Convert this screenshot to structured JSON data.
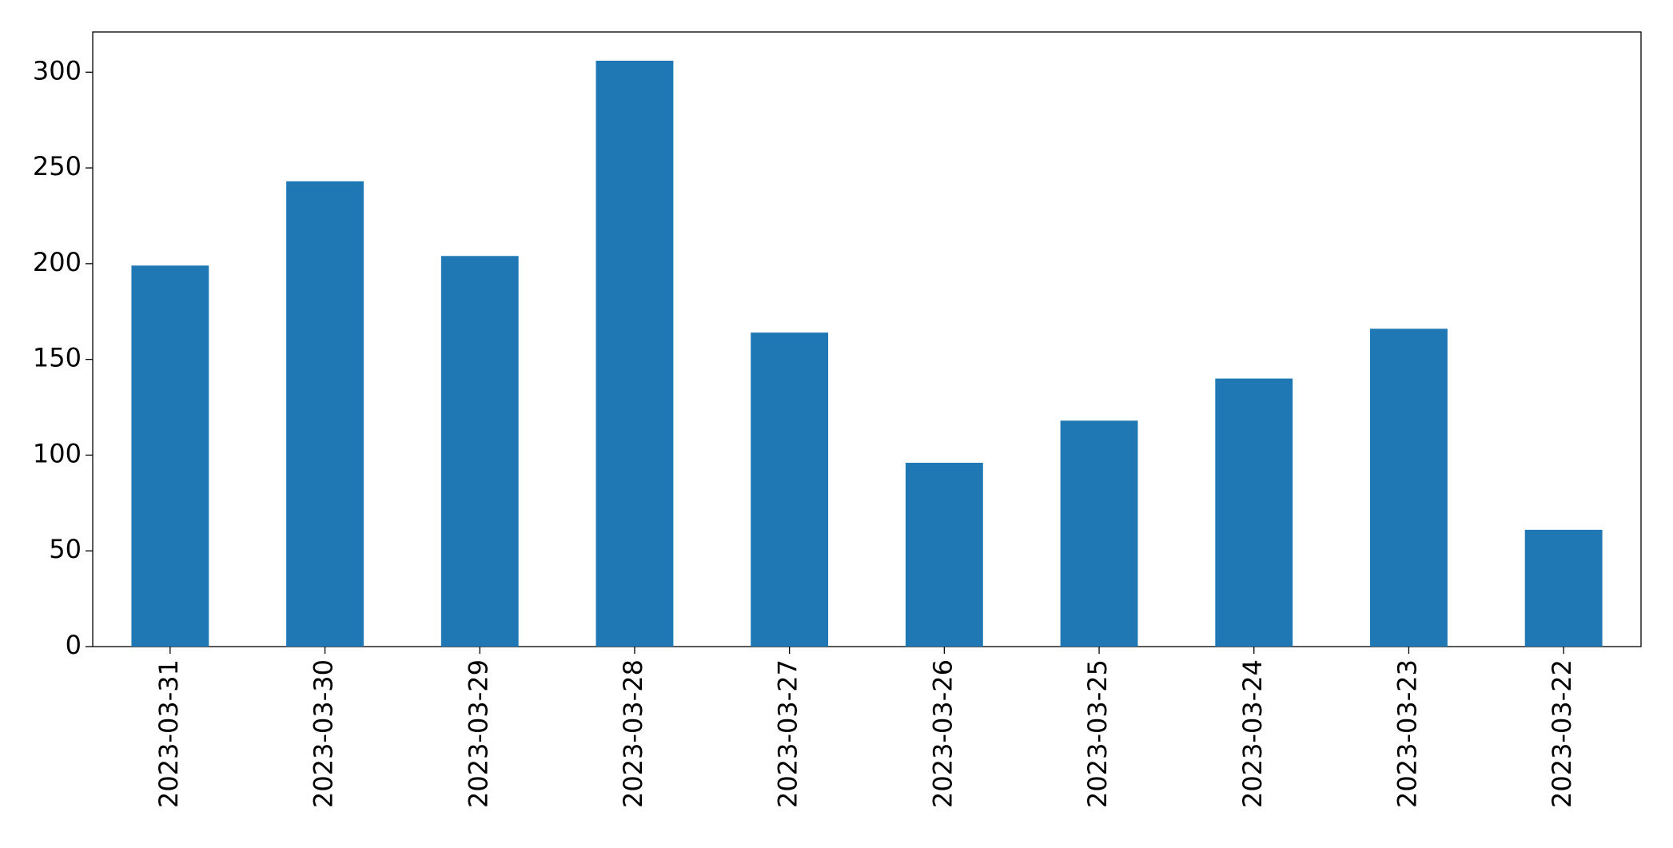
{
  "chart_data": {
    "type": "bar",
    "categories": [
      "2023-03-31",
      "2023-03-30",
      "2023-03-29",
      "2023-03-28",
      "2023-03-27",
      "2023-03-26",
      "2023-03-25",
      "2023-03-24",
      "2023-03-23",
      "2023-03-22"
    ],
    "values": [
      199,
      243,
      204,
      306,
      164,
      96,
      118,
      140,
      166,
      61
    ],
    "color": "#1f77b4",
    "ylim": [
      0,
      321
    ],
    "yticks": [
      0,
      50,
      100,
      150,
      200,
      250,
      300
    ],
    "grid": false
  }
}
